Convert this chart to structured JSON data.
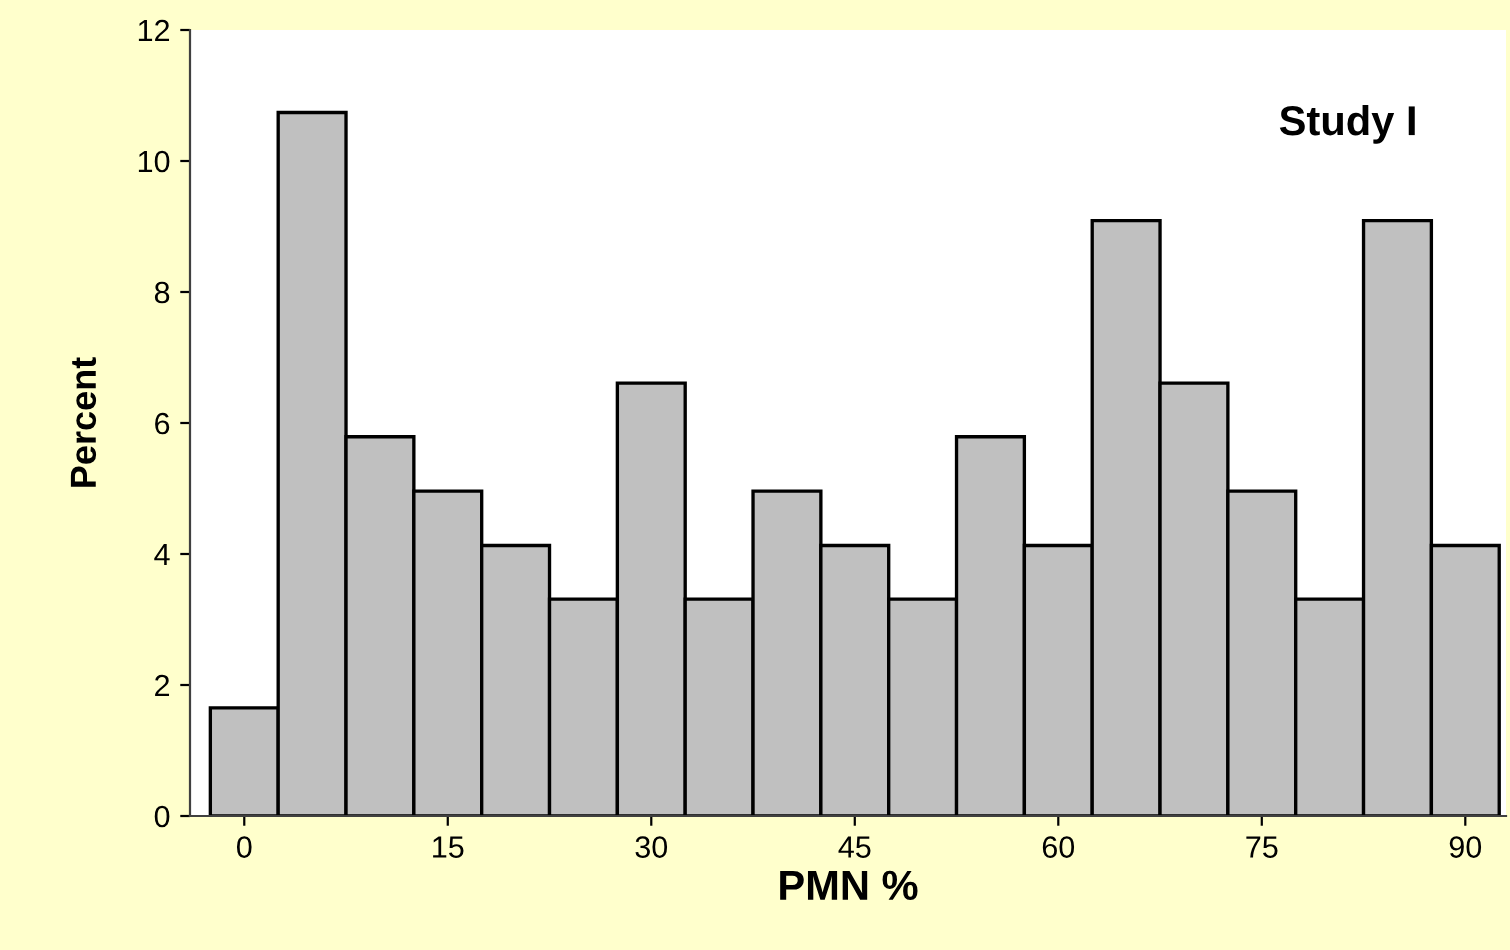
{
  "chart_data": {
    "type": "histogram",
    "annotations": [
      "Study I"
    ],
    "xlabel": "PMN %",
    "ylabel": "Percent",
    "bins": [
      -2.5,
      2.5,
      7.5,
      12.5,
      17.5,
      22.5,
      27.5,
      32.5,
      37.5,
      42.5,
      47.5,
      52.5,
      57.5,
      62.5,
      67.5,
      72.5,
      77.5,
      82.5,
      87.5,
      92.5
    ],
    "values": [
      1.65,
      10.74,
      5.79,
      4.96,
      4.13,
      3.31,
      6.61,
      3.31,
      4.96,
      4.13,
      3.31,
      5.79,
      4.13,
      9.09,
      6.61,
      4.96,
      3.31,
      9.09,
      4.13
    ],
    "color": "#c0c0c0",
    "xlim": [
      -4,
      93
    ],
    "ylim": [
      0,
      12
    ],
    "xticks": [
      0,
      15,
      30,
      45,
      60,
      75,
      90
    ],
    "yticks": [
      0,
      2,
      4,
      6,
      8,
      10,
      12
    ],
    "grid": false
  }
}
